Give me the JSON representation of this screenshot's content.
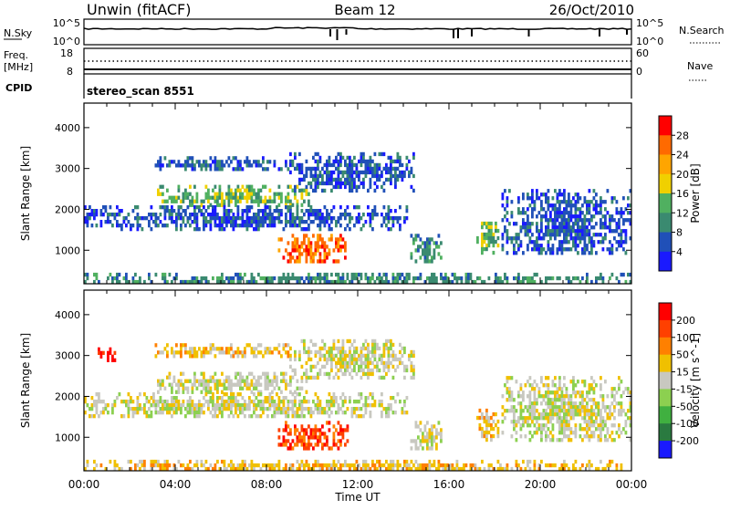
{
  "header": {
    "station": "Unwin (fitACF)",
    "beam": "Beam 12",
    "date": "26/Oct/2010"
  },
  "top_panels": {
    "nsky_label": "N.Sky",
    "nsearch_label": "N.Search",
    "nsky_ticks": [
      "10^5",
      "10^0"
    ],
    "nsky_right_ticks": [
      "10^5",
      "10^0"
    ],
    "freq_label_1": "Freq.",
    "freq_label_2": "[MHz]",
    "freq_ticks": [
      "18",
      "8"
    ],
    "nave_label": "Nave",
    "nave_ticks": [
      "60",
      "0"
    ],
    "cpid_label": "CPID",
    "cpid_value": "stereo_scan 8551"
  },
  "chart_data": [
    {
      "type": "heatmap",
      "xlabel": "",
      "ylabel": "Slant Range [km]",
      "x_ticks": [
        "00:00",
        "04:00",
        "08:00",
        "12:00",
        "16:00",
        "20:00",
        "00:00"
      ],
      "xlim_hours": [
        0,
        24
      ],
      "ylim": [
        180,
        4600
      ],
      "y_ticks": [
        1000,
        2000,
        3000,
        4000
      ],
      "colorbar": {
        "label": "Power [dB]",
        "ticks": [
          "4",
          "8",
          "12",
          "16",
          "20",
          "24",
          "28"
        ],
        "colors": [
          "#1a1aff",
          "#2050b8",
          "#3a8a70",
          "#50b060",
          "#f0d000",
          "#ffa500",
          "#ff6a00",
          "#ff0000"
        ]
      },
      "regions": [
        {
          "t": [
            3.2,
            9.9
          ],
          "r": [
            2100,
            2600
          ],
          "level": 3
        },
        {
          "t": [
            8.5,
            11.6
          ],
          "r": [
            700,
            1400
          ],
          "level": 6
        },
        {
          "t": [
            3.0,
            9.0
          ],
          "r": [
            3000,
            3300
          ],
          "level": 1
        },
        {
          "t": [
            0.0,
            14.2
          ],
          "r": [
            1500,
            2100
          ],
          "level": 1
        },
        {
          "t": [
            9.0,
            14.5
          ],
          "r": [
            2500,
            3400
          ],
          "level": 1
        },
        {
          "t": [
            14.3,
            15.7
          ],
          "r": [
            700,
            1400
          ],
          "level": 2
        },
        {
          "t": [
            17.2,
            18.2
          ],
          "r": [
            900,
            1700
          ],
          "level": 3
        },
        {
          "t": [
            18.3,
            24.0
          ],
          "r": [
            900,
            2500
          ],
          "level": 1
        },
        {
          "t": [
            0.0,
            24.0
          ],
          "r": [
            200,
            450
          ],
          "level": 2
        }
      ]
    },
    {
      "type": "heatmap",
      "xlabel": "Time UT",
      "ylabel": "Slant Range [km]",
      "x_ticks": [
        "00:00",
        "04:00",
        "08:00",
        "12:00",
        "16:00",
        "20:00",
        "00:00"
      ],
      "xlim_hours": [
        0,
        24
      ],
      "ylim": [
        180,
        4600
      ],
      "y_ticks": [
        1000,
        2000,
        3000,
        4000
      ],
      "colorbar": {
        "label": "Velocity [m s^-1]",
        "ticks": [
          "200",
          "100",
          "50",
          "15",
          "-15",
          "-50",
          "-100",
          "-200"
        ],
        "colors": [
          "#1a1aff",
          "#2a7a40",
          "#40b040",
          "#8cd050",
          "#c8c8c0",
          "#f0c000",
          "#ff8000",
          "#ff4000",
          "#ff0000"
        ]
      },
      "regions": [
        {
          "t": [
            3.2,
            9.9
          ],
          "r": [
            2100,
            2600
          ],
          "level": 4
        },
        {
          "t": [
            8.5,
            11.6
          ],
          "r": [
            700,
            1400
          ],
          "level": 7
        },
        {
          "t": [
            3.0,
            9.0
          ],
          "r": [
            3000,
            3300
          ],
          "level": 5
        },
        {
          "t": [
            0.0,
            14.2
          ],
          "r": [
            1500,
            2100
          ],
          "level": 4
        },
        {
          "t": [
            9.0,
            14.5
          ],
          "r": [
            2500,
            3400
          ],
          "level": 4
        },
        {
          "t": [
            14.3,
            15.7
          ],
          "r": [
            700,
            1400
          ],
          "level": 4
        },
        {
          "t": [
            17.2,
            18.2
          ],
          "r": [
            900,
            1700
          ],
          "level": 5
        },
        {
          "t": [
            18.3,
            24.0
          ],
          "r": [
            900,
            2500
          ],
          "level": 4
        },
        {
          "t": [
            0.0,
            24.0
          ],
          "r": [
            200,
            450
          ],
          "level": 5
        },
        {
          "t": [
            0.6,
            1.4
          ],
          "r": [
            2900,
            3200
          ],
          "level": 8
        }
      ]
    }
  ]
}
